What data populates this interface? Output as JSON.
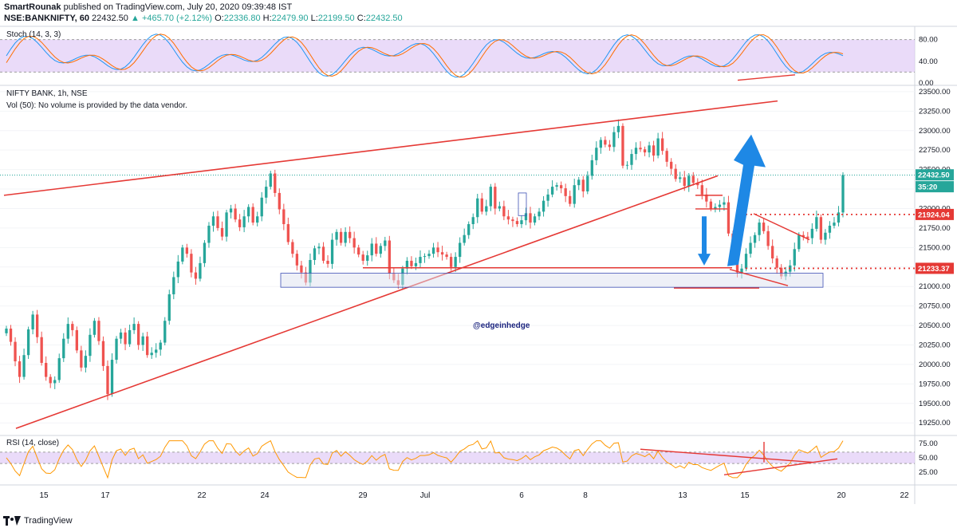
{
  "header": {
    "author": "SmartRounak",
    "published": "published on TradingView.com, July 20, 2020 09:39:48 IST",
    "symbol": "NSE:BANKNIFTY, 60",
    "last": "22432.50",
    "change": "+465.70 (+2.12%)",
    "o_label": "O:",
    "o": "22336.80",
    "h_label": "H:",
    "h": "22479.90",
    "l_label": "L:",
    "l": "22199.50",
    "c_label": "C:",
    "c": "22432.50"
  },
  "stoch_pane": {
    "label": "Stoch (14, 3, 3)",
    "ticks": [
      "80.00",
      "40.00",
      "0.00"
    ]
  },
  "main_pane": {
    "title": "NIFTY BANK, 1h, NSE",
    "vol_note": "Vol (50): No volume is provided by the data vendor.",
    "watermark": "@edgeinhedge",
    "price_ticks": [
      "23500.00",
      "23250.00",
      "23000.00",
      "22750.00",
      "22500.00",
      "22250.00",
      "22000.00",
      "21750.00",
      "21500.00",
      "21250.00",
      "21000.00",
      "20750.00",
      "20500.00",
      "20250.00",
      "20000.00",
      "19750.00",
      "19500.00",
      "19250.00"
    ],
    "badges": [
      {
        "text": "22432.50",
        "color": "#26a69a"
      },
      {
        "text": "35:20",
        "color": "#26a69a"
      },
      {
        "text": "21924.04",
        "color": "#e53935"
      },
      {
        "text": "21233.37",
        "color": "#e53935"
      }
    ]
  },
  "rsi_pane": {
    "label": "RSI (14, close)",
    "ticks": [
      "75.00",
      "50.00",
      "25.00"
    ]
  },
  "x_axis": {
    "labels": [
      "15",
      "17",
      "22",
      "24",
      "29",
      "Jul",
      "6",
      "8",
      "13",
      "15",
      "20",
      "22"
    ]
  },
  "footer": {
    "brand": "TradingView"
  },
  "colors": {
    "up": "#26a69a",
    "down": "#ef5350",
    "trend": "#e53935",
    "arrow": "#1e88e5",
    "band": "#e1ccf7"
  },
  "chart_data": {
    "type": "candlestick",
    "title": "NIFTY BANK, 1h, NSE",
    "ylim": [
      19150,
      23550
    ],
    "closes": [
      20460,
      20290,
      20040,
      19840,
      20120,
      20450,
      20640,
      20350,
      20020,
      19840,
      19760,
      19800,
      20080,
      20330,
      20520,
      20440,
      20180,
      19960,
      20110,
      20380,
      20560,
      20300,
      19980,
      19620,
      20060,
      20330,
      20410,
      20260,
      20440,
      20520,
      20250,
      20360,
      20120,
      20150,
      20190,
      20280,
      20560,
      20900,
      21120,
      21320,
      21500,
      21420,
      21180,
      21100,
      21300,
      21560,
      21780,
      21900,
      21750,
      21640,
      21950,
      22000,
      21860,
      21760,
      21900,
      22020,
      21820,
      21900,
      22140,
      22280,
      22450,
      22200,
      21990,
      21800,
      21570,
      21420,
      21270,
      21180,
      21050,
      21340,
      21490,
      21510,
      21330,
      21290,
      21600,
      21700,
      21560,
      21700,
      21620,
      21500,
      21410,
      21330,
      21400,
      21550,
      21420,
      21520,
      21590,
      21170,
      21080,
      21020,
      21230,
      21330,
      21260,
      21300,
      21380,
      21390,
      21420,
      21500,
      21440,
      21410,
      21380,
      21250,
      21380,
      21560,
      21660,
      21800,
      21890,
      22130,
      21960,
      22030,
      22280,
      22000,
      22030,
      21900,
      21860,
      21840,
      21800,
      21850,
      21940,
      21820,
      21900,
      21960,
      22100,
      22180,
      22280,
      22300,
      22260,
      22160,
      22060,
      22300,
      22370,
      22220,
      22420,
      22620,
      22780,
      22880,
      22820,
      22790,
      22980,
      23060,
      22550,
      22560,
      22700,
      22780,
      22760,
      22720,
      22810,
      22680,
      22900,
      22740,
      22600,
      22510,
      22380,
      22400,
      22290,
      22420,
      22330,
      22300,
      22180,
      22090,
      22000,
      22020,
      22050,
      22080,
      21680,
      21320,
      21180,
      21230,
      21420,
      21560,
      21660,
      21820,
      21710,
      21520,
      21360,
      21240,
      21130,
      21190,
      21270,
      21480,
      21660,
      21640,
      21620,
      21740,
      21890,
      21600,
      21690,
      21780,
      21820,
      21950,
      22430
    ],
    "indicators": {
      "stoch_range": [
        0,
        100
      ],
      "stoch_band": [
        20,
        80
      ],
      "rsi_range": [
        5,
        85
      ],
      "rsi_band": [
        40,
        60
      ]
    }
  }
}
